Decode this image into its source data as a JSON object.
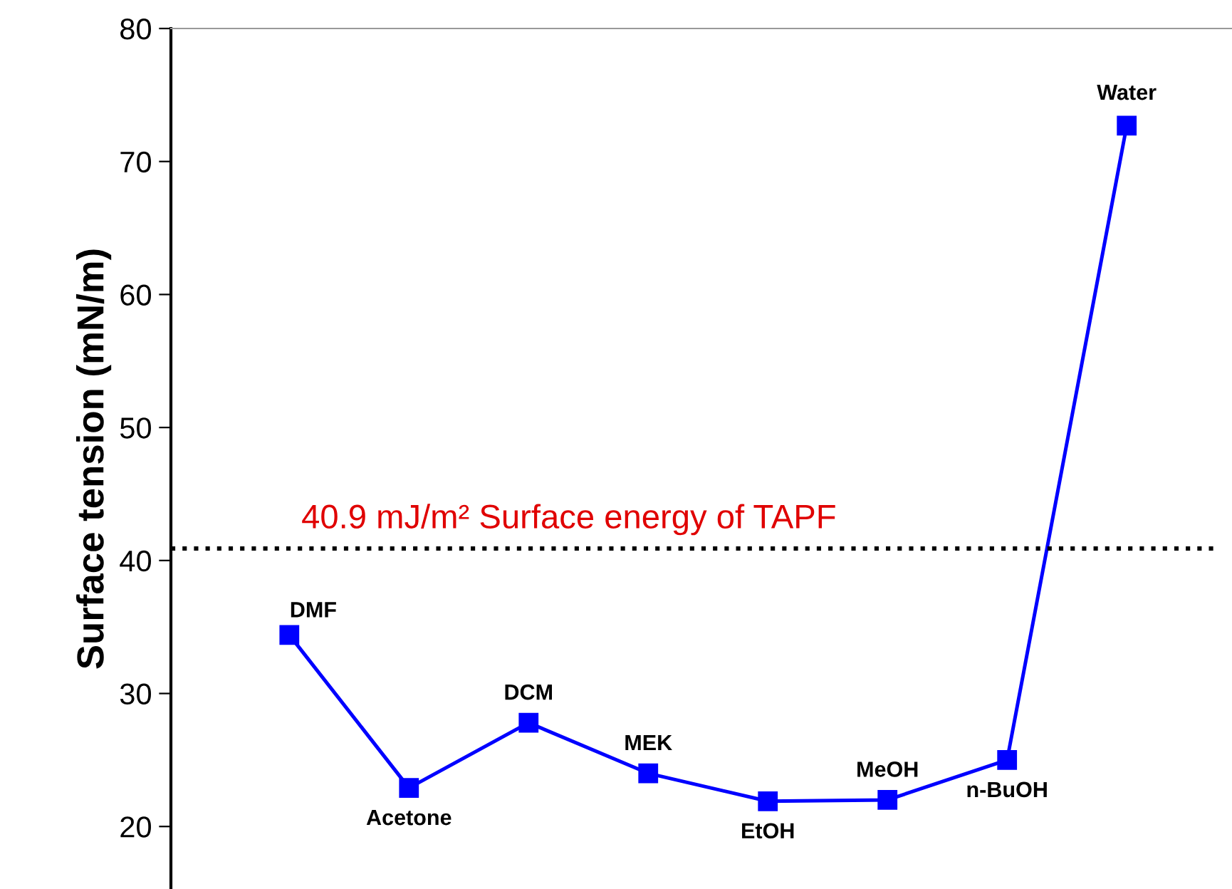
{
  "chart_data": {
    "type": "line",
    "ylabel": "Surface tension (mN/m)",
    "categories": [
      "DMF",
      "Acetone",
      "DCM",
      "MEK",
      "EtOH",
      "MeOH",
      "n-BuOH",
      "Water"
    ],
    "series": [
      {
        "color": "#0000ff",
        "values": [
          34.4,
          22.9,
          27.8,
          24.0,
          21.9,
          22.0,
          25.0,
          72.7
        ]
      }
    ],
    "ylim": [
      15.3,
      80
    ],
    "yticks": [
      20,
      30,
      40,
      50,
      60,
      70,
      80
    ],
    "ref_lines": [
      {
        "axis": "y",
        "value": 40.9,
        "label": "40.9 mJ/m² Surface energy of TAPF",
        "color": "#000000",
        "line_style": "dotted"
      }
    ],
    "marker": "square",
    "line_style": "solid",
    "grid": false,
    "legend": false,
    "tick_labels": "y"
  }
}
